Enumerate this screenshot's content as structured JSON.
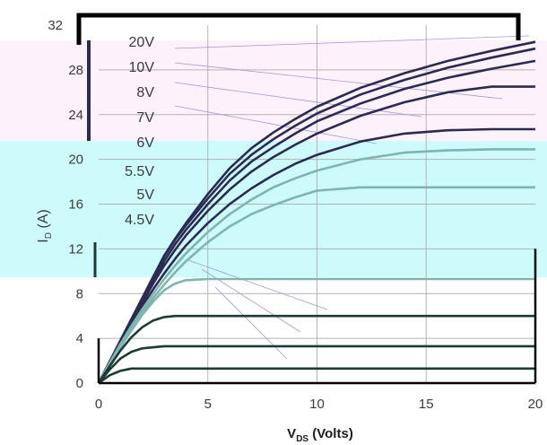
{
  "chart_data": {
    "type": "line",
    "xlabel": "V",
    "xlabel_sub": "DS",
    "xlabel_suffix": " (Volts)",
    "ylabel": "I",
    "ylabel_sub": "D",
    "ylabel_suffix": " (A)",
    "xlim": [
      0,
      20
    ],
    "ylim": [
      0,
      32
    ],
    "x_ticks": [
      "0",
      "5",
      "10",
      "15",
      "20"
    ],
    "y_ticks": [
      "0",
      "4",
      "8",
      "12",
      "16",
      "20",
      "24",
      "28",
      "32"
    ],
    "grid": true,
    "x": [
      0,
      0.5,
      1,
      1.5,
      2,
      2.5,
      3,
      3.5,
      4,
      5,
      6,
      7,
      8,
      9,
      10,
      12,
      14,
      16,
      18,
      20
    ],
    "series": [
      {
        "name": "20V",
        "values": [
          0,
          1.9,
          3.8,
          5.7,
          7.6,
          9.5,
          11.4,
          12.9,
          14.3,
          16.9,
          19.2,
          21.0,
          22.4,
          23.6,
          24.7,
          26.4,
          27.7,
          28.8,
          29.7,
          30.5
        ]
      },
      {
        "name": "10V",
        "values": [
          0,
          1.9,
          3.8,
          5.7,
          7.6,
          9.5,
          11.3,
          12.8,
          14.1,
          16.5,
          18.7,
          20.4,
          21.8,
          23.0,
          24.1,
          25.8,
          27.1,
          28.2,
          29.1,
          29.9
        ]
      },
      {
        "name": "8V",
        "values": [
          0,
          1.9,
          3.8,
          5.6,
          7.4,
          9.2,
          10.9,
          12.4,
          13.7,
          16.0,
          18.1,
          19.8,
          21.1,
          22.3,
          23.4,
          25.0,
          26.3,
          27.3,
          28.1,
          28.8
        ]
      },
      {
        "name": "7V",
        "values": [
          0,
          1.9,
          3.7,
          5.5,
          7.2,
          8.9,
          10.5,
          11.9,
          13.2,
          15.4,
          17.3,
          18.9,
          20.2,
          21.3,
          22.3,
          23.9,
          25.1,
          26.0,
          26.5,
          26.5
        ]
      },
      {
        "name": "6V",
        "values": [
          0,
          1.8,
          3.6,
          5.3,
          6.9,
          8.4,
          9.8,
          11.1,
          12.3,
          14.3,
          16.0,
          17.4,
          18.6,
          19.6,
          20.4,
          21.6,
          22.3,
          22.6,
          22.7,
          22.7
        ]
      },
      {
        "name": "5.5V",
        "values": [
          0,
          1.8,
          3.5,
          5.1,
          6.6,
          8.0,
          9.3,
          10.5,
          11.6,
          13.5,
          15.1,
          16.4,
          17.5,
          18.3,
          19.0,
          20.0,
          20.6,
          20.8,
          20.9,
          20.9
        ]
      },
      {
        "name": "5V",
        "values": [
          0,
          1.7,
          3.4,
          4.9,
          6.3,
          7.6,
          8.8,
          9.9,
          10.9,
          12.6,
          14.0,
          15.1,
          15.9,
          16.6,
          17.2,
          17.5,
          17.5,
          17.5,
          17.5,
          17.5
        ]
      },
      {
        "name": "4.5V",
        "values": [
          0,
          1.7,
          3.2,
          4.7,
          6.1,
          7.3,
          8.3,
          8.9,
          9.2,
          9.3,
          9.3,
          9.3,
          9.3,
          9.3,
          9.3,
          9.3,
          9.3,
          9.3,
          9.3,
          9.3
        ]
      },
      {
        "name": "",
        "values": [
          0,
          1.5,
          2.9,
          4.1,
          5.0,
          5.6,
          5.9,
          6.0,
          6.0,
          6.0,
          6.0,
          6.0,
          6.0,
          6.0,
          6.0,
          6.0,
          6.0,
          6.0,
          6.0,
          6.0
        ]
      },
      {
        "name": "",
        "values": [
          0,
          1.2,
          2.2,
          2.8,
          3.1,
          3.2,
          3.3,
          3.3,
          3.3,
          3.3,
          3.3,
          3.3,
          3.3,
          3.3,
          3.3,
          3.3,
          3.3,
          3.3,
          3.3,
          3.3
        ]
      },
      {
        "name": "",
        "values": [
          0,
          0.7,
          1.1,
          1.3,
          1.3,
          1.3,
          1.3,
          1.3,
          1.3,
          1.3,
          1.3,
          1.3,
          1.3,
          1.3,
          1.3,
          1.3,
          1.3,
          1.3,
          1.3,
          1.3
        ]
      }
    ],
    "colors": {
      "curve_dark": "#2b2b52",
      "curve_dark_lower": "#1d3b35",
      "curve_light": "#7fb5ae",
      "pink_band": "#fdf1fb",
      "cyan_band": "#cdfbfb",
      "axis": "#000000",
      "grid": "#b3b3b3",
      "leader": "#9a9ad8"
    }
  }
}
